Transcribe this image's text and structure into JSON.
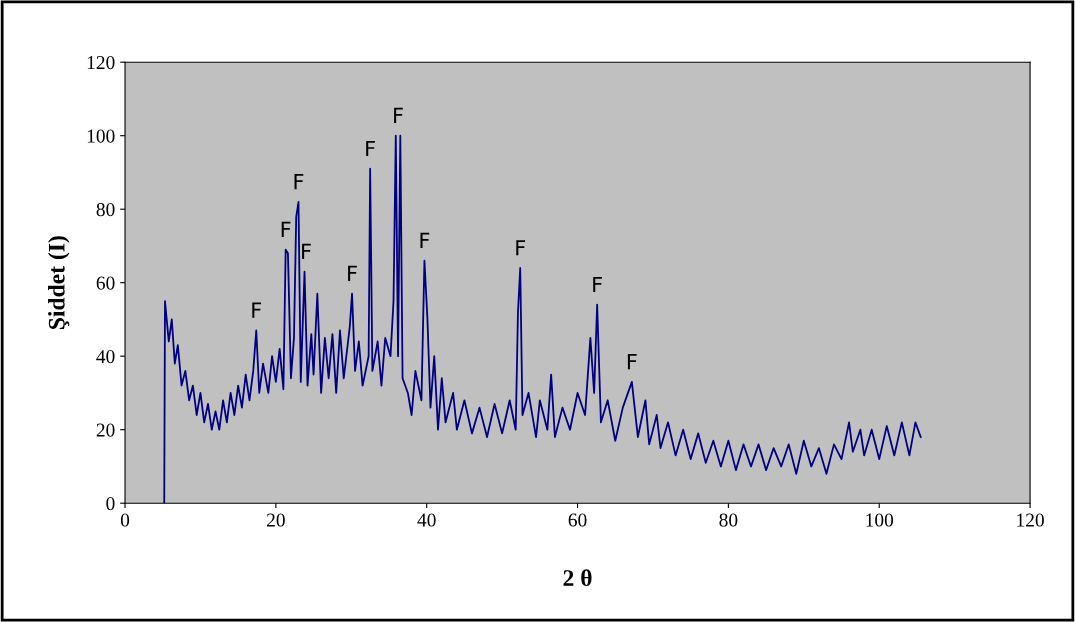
{
  "chart_data": {
    "type": "line",
    "xlabel": "2 θ",
    "ylabel": "Şiddet (I)",
    "xlim": [
      0,
      120
    ],
    "xticks": [
      0,
      20,
      40,
      60,
      80,
      100,
      120
    ],
    "ylim": [
      0,
      120
    ],
    "yticks": [
      0,
      20,
      40,
      60,
      80,
      100,
      120
    ],
    "grid": false,
    "marker": "none",
    "line_style": "solid",
    "series": [
      {
        "color": "#000080",
        "x": [
          5.2,
          5.3,
          5.8,
          6.2,
          6.6,
          7,
          7.5,
          8,
          8.5,
          9,
          9.5,
          10,
          10.5,
          11,
          11.5,
          12,
          12.5,
          13,
          13.5,
          14,
          14.5,
          15,
          15.5,
          16,
          16.5,
          17,
          17.4,
          17.8,
          18.3,
          19,
          19.5,
          20,
          20.5,
          21,
          21.3,
          21.6,
          22,
          22.4,
          22.7,
          23,
          23.3,
          23.8,
          24.2,
          24.7,
          25,
          25.5,
          26,
          26.5,
          27,
          27.5,
          28,
          28.5,
          29,
          29.8,
          30.1,
          30.5,
          31,
          31.5,
          32.3,
          32.5,
          32.8,
          33.5,
          34,
          34.5,
          35.2,
          35.6,
          35.9,
          36.2,
          36.5,
          36.8,
          37.5,
          38,
          38.5,
          39.3,
          39.7,
          40.1,
          40.5,
          41,
          41.5,
          42,
          42.5,
          43.5,
          44,
          45,
          46,
          47,
          48,
          49,
          50,
          51,
          51.8,
          52.1,
          52.4,
          52.7,
          53.5,
          54.5,
          55,
          56,
          56.5,
          57,
          58,
          59,
          60,
          61,
          61.7,
          62.2,
          62.6,
          63.1,
          64,
          65,
          66,
          67.2,
          68,
          69,
          69.5,
          70.5,
          71,
          72,
          73,
          74,
          75,
          76,
          77,
          78,
          79,
          80,
          81,
          82,
          83,
          84,
          85,
          86,
          87,
          88,
          89,
          90,
          91,
          92,
          93,
          94,
          95,
          96,
          96.5,
          97.5,
          98,
          99,
          100,
          101,
          102,
          103,
          104,
          104.8,
          105.5
        ],
        "values": [
          0,
          55,
          44,
          50,
          38,
          43,
          32,
          36,
          28,
          32,
          24,
          30,
          22,
          27,
          20,
          25,
          20,
          28,
          22,
          30,
          24,
          32,
          26,
          35,
          28,
          36,
          47,
          30,
          38,
          30,
          40,
          33,
          42,
          31,
          69,
          68,
          34,
          45,
          78,
          82,
          33,
          63,
          32,
          46,
          35,
          57,
          30,
          45,
          34,
          46,
          30,
          47,
          34,
          48,
          57,
          36,
          44,
          32,
          40,
          91,
          36,
          44,
          32,
          45,
          40,
          55,
          100,
          40,
          100,
          34,
          30,
          24,
          36,
          28,
          66,
          50,
          26,
          40,
          20,
          34,
          22,
          30,
          20,
          28,
          19,
          26,
          18,
          27,
          19,
          28,
          20,
          52,
          64,
          24,
          30,
          18,
          28,
          20,
          35,
          18,
          26,
          20,
          30,
          24,
          45,
          30,
          54,
          22,
          28,
          17,
          26,
          33,
          18,
          28,
          16,
          24,
          15,
          22,
          13,
          20,
          12,
          19,
          11,
          17,
          10,
          17,
          9,
          16,
          10,
          16,
          9,
          15,
          10,
          16,
          8,
          17,
          10,
          15,
          8,
          16,
          12,
          22,
          14,
          20,
          13,
          20,
          12,
          21,
          13,
          22,
          13,
          22,
          18
        ]
      }
    ],
    "annotations": [
      {
        "text": "F",
        "x": 17.4,
        "y": 47
      },
      {
        "text": "F",
        "x": 21.3,
        "y": 69
      },
      {
        "text": "F",
        "x": 23,
        "y": 82
      },
      {
        "text": "F",
        "x": 24,
        "y": 63
      },
      {
        "text": "F",
        "x": 30.1,
        "y": 57
      },
      {
        "text": "F",
        "x": 32.5,
        "y": 91
      },
      {
        "text": "F",
        "x": 36.2,
        "y": 100
      },
      {
        "text": "F",
        "x": 39.7,
        "y": 66
      },
      {
        "text": "F",
        "x": 52.4,
        "y": 64
      },
      {
        "text": "F",
        "x": 62.6,
        "y": 54
      },
      {
        "text": "F",
        "x": 67.2,
        "y": 33
      }
    ]
  }
}
